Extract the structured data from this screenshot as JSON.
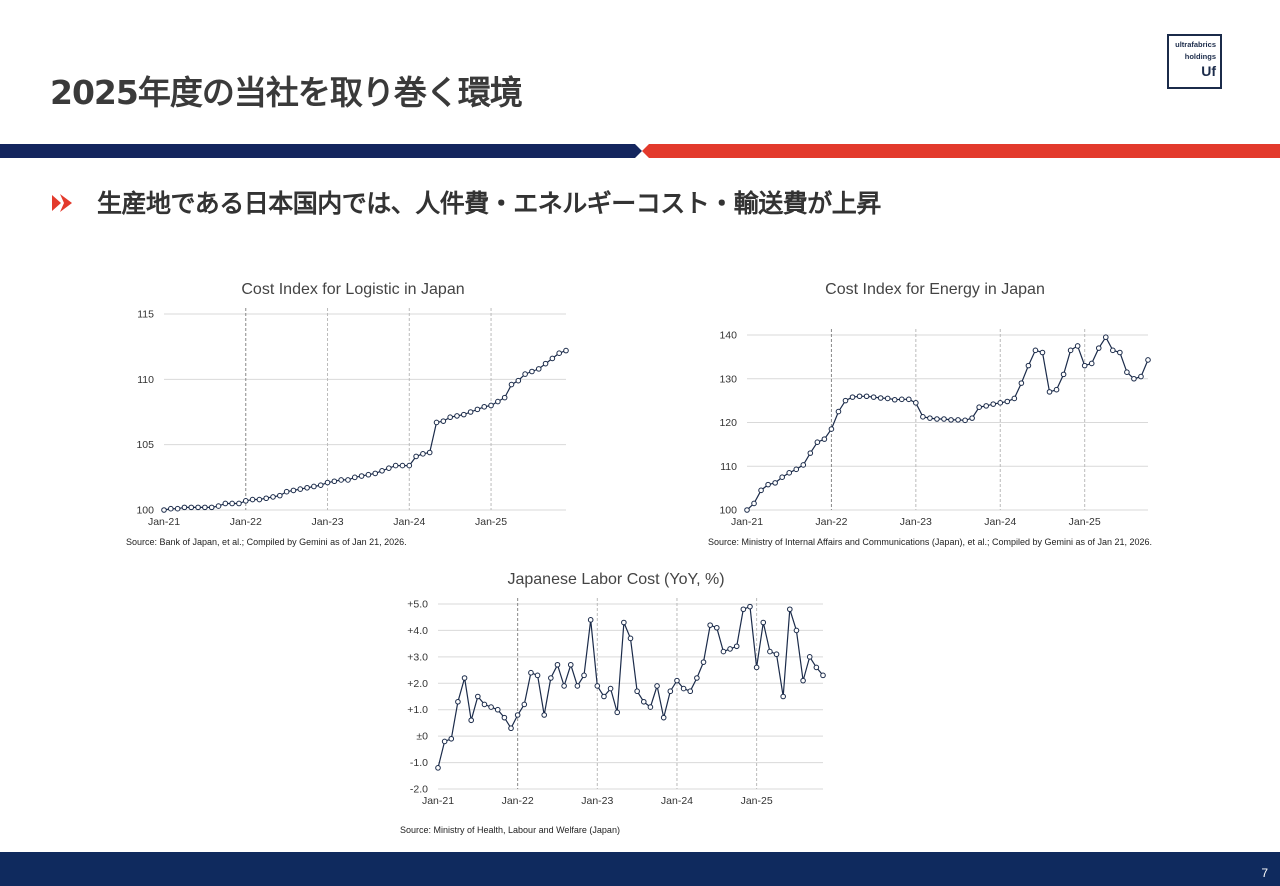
{
  "header": {
    "title": "2025年度の当社を取り巻く環境",
    "logo": {
      "line1": "ultrafabrics",
      "line2": "holdings",
      "line3": "Uf"
    }
  },
  "bullet": {
    "text": "生産地である日本国内では、人件費・エネルギーコスト・輸送費が上昇"
  },
  "colors": {
    "navy": "#14265e",
    "red": "#e33a2c",
    "line": "#1b2b4a"
  },
  "chart_data": [
    {
      "type": "line",
      "title": "Cost Index for Logistic in Japan",
      "xticks": [
        "Jan-21",
        "Jan-22",
        "Jan-23",
        "Jan-24",
        "Jan-25"
      ],
      "yticks": [
        "100",
        "105",
        "110",
        "115"
      ],
      "ylim": [
        100,
        115
      ],
      "x_start": "2021-01",
      "series": [
        {
          "values": [
            100.0,
            100.1,
            100.1,
            100.2,
            100.2,
            100.2,
            100.2,
            100.2,
            100.3,
            100.5,
            100.5,
            100.5,
            100.7,
            100.8,
            100.8,
            100.9,
            101.0,
            101.1,
            101.4,
            101.5,
            101.6,
            101.7,
            101.8,
            101.9,
            102.1,
            102.2,
            102.3,
            102.3,
            102.5,
            102.6,
            102.7,
            102.8,
            103.0,
            103.2,
            103.4,
            103.4,
            103.4,
            104.1,
            104.3,
            104.4,
            106.7,
            106.8,
            107.1,
            107.2,
            107.3,
            107.5,
            107.7,
            107.9,
            108.0,
            108.3,
            108.6,
            109.6,
            109.9,
            110.4,
            110.6,
            110.8,
            111.2,
            111.6,
            112.0,
            112.2
          ]
        }
      ],
      "grid": true,
      "source": "Source: Bank of Japan, et al.; Compiled by Gemini as of Jan 21, 2026."
    },
    {
      "type": "line",
      "title": "Cost Index for Energy in Japan",
      "xticks": [
        "Jan-21",
        "Jan-22",
        "Jan-23",
        "Jan-24",
        "Jan-25"
      ],
      "yticks": [
        "100",
        "110",
        "120",
        "130",
        "140"
      ],
      "ylim": [
        100,
        140
      ],
      "x_start": "2021-01",
      "series": [
        {
          "values": [
            100.0,
            101.5,
            104.5,
            105.8,
            106.2,
            107.5,
            108.5,
            109.3,
            110.3,
            113.0,
            115.5,
            116.2,
            118.5,
            122.5,
            125.0,
            125.8,
            126.0,
            126.0,
            125.8,
            125.6,
            125.5,
            125.2,
            125.3,
            125.3,
            124.5,
            121.3,
            121.0,
            120.8,
            120.8,
            120.6,
            120.6,
            120.5,
            121.0,
            123.5,
            123.8,
            124.2,
            124.5,
            124.8,
            125.5,
            129.0,
            133.0,
            136.5,
            136.0,
            127.0,
            127.5,
            131.0,
            136.5,
            137.5,
            133.0,
            133.5,
            137.0,
            139.5,
            136.5,
            136.0,
            131.5,
            130.0,
            130.5,
            134.3
          ]
        }
      ],
      "grid": true,
      "source": "Source: Ministry of Internal Affairs and Communications (Japan), et al.; Compiled by Gemini as of Jan 21, 2026."
    },
    {
      "type": "line",
      "title": "Japanese Labor Cost (YoY, %)",
      "xticks": [
        "Jan-21",
        "Jan-22",
        "Jan-23",
        "Jan-24",
        "Jan-25"
      ],
      "yticks": [
        "-2.0",
        "-1.0",
        "±0",
        "+1.0",
        "+2.0",
        "+3.0",
        "+4.0",
        "+5.0"
      ],
      "ylim": [
        -2.0,
        5.0
      ],
      "x_start": "2021-01",
      "series": [
        {
          "values": [
            -1.2,
            -0.2,
            -0.1,
            1.3,
            2.2,
            0.6,
            1.5,
            1.2,
            1.1,
            1.0,
            0.7,
            0.3,
            0.8,
            1.2,
            2.4,
            2.3,
            0.8,
            2.2,
            2.7,
            1.9,
            2.7,
            1.9,
            2.3,
            4.4,
            1.9,
            1.5,
            1.8,
            0.9,
            4.3,
            3.7,
            1.7,
            1.3,
            1.1,
            1.9,
            0.7,
            1.7,
            2.1,
            1.8,
            1.7,
            2.2,
            2.8,
            4.2,
            4.1,
            3.2,
            3.3,
            3.4,
            4.8,
            4.9,
            2.6,
            4.3,
            3.2,
            3.1,
            1.5,
            4.8,
            4.0,
            2.1,
            3.0,
            2.6,
            2.3
          ]
        }
      ],
      "grid": true,
      "source": "Source: Ministry of Health, Labour and Welfare (Japan)"
    }
  ],
  "footer": {
    "page": "7"
  }
}
